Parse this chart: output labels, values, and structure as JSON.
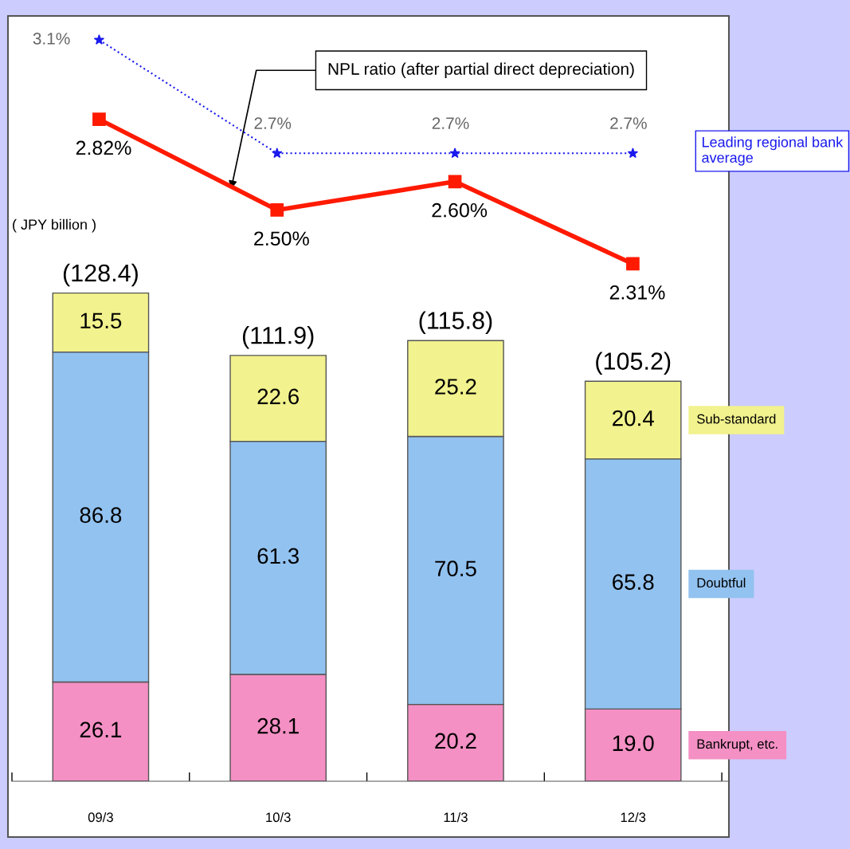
{
  "chart_data": [
    {
      "type": "bar",
      "stacked": true,
      "categories": [
        "09/3",
        "10/3",
        "11/3",
        "12/3"
      ],
      "series": [
        {
          "name": "Bankrupt, etc.",
          "color": "#f490c4",
          "values": [
            26.1,
            28.1,
            20.2,
            19.0
          ],
          "value_labels": [
            "26.1",
            "28.1",
            "20.2",
            "19.0"
          ]
        },
        {
          "name": "Doubtful",
          "color": "#92c2f0",
          "values": [
            86.8,
            61.3,
            70.5,
            65.8
          ],
          "value_labels": [
            "86.8",
            "61.3",
            "70.5",
            "65.8"
          ]
        },
        {
          "name": "Sub-standard",
          "color": "#f2f28e",
          "values": [
            15.5,
            22.6,
            25.2,
            20.4
          ],
          "value_labels": [
            "15.5",
            "22.6",
            "25.2",
            "20.4"
          ]
        }
      ],
      "totals": [
        "(128.4)",
        "(111.9)",
        "(115.8)",
        "(105.2)"
      ],
      "tick_labels": "x",
      "grid": false,
      "annotations": [
        "( JPY billion )"
      ]
    },
    {
      "type": "line",
      "categories": [
        null,
        null,
        null,
        null
      ],
      "series": [
        {
          "name": "Leading regional bank average",
          "color": "#1a1aee",
          "line_style": "dotted",
          "marker": "star",
          "values": [
            3.1,
            2.7,
            2.7,
            2.7
          ],
          "value_labels": [
            "3.1%",
            "2.7%",
            "2.7%",
            "2.7%"
          ]
        },
        {
          "color": "#ff1a00",
          "line_style": "solid",
          "marker": "square",
          "values": [
            2.82,
            2.5,
            2.6,
            2.31
          ],
          "value_labels": [
            "2.82%",
            "2.50%",
            "2.60%",
            "2.31%"
          ]
        }
      ],
      "tick_labels": false,
      "grid": false,
      "annotations": [
        "NPL ratio (after partial direct depreciation)"
      ]
    }
  ]
}
